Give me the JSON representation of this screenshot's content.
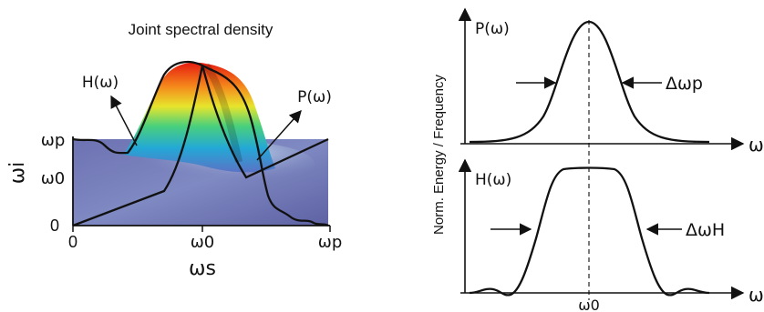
{
  "left_panel": {
    "title": "Joint spectral density",
    "x_axis_label": "ωs",
    "y_axis_label": "ωi",
    "x_ticks": [
      "0",
      "ω0",
      "ωp"
    ],
    "y_ticks": [
      "ωp",
      "ω0",
      "0"
    ],
    "callout_h": "H(ω)",
    "callout_p": "P(ω)",
    "colors": {
      "plane": "#6a6fae",
      "curve": "#111111"
    }
  },
  "right_panel": {
    "y_axis_label": "Norm. Energy / Frequency",
    "top": {
      "label": "P(ω)",
      "width_label": "Δωp",
      "axis_label": "ω"
    },
    "bottom": {
      "label": "H(ω)",
      "width_label": "ΔωH",
      "axis_label": "ω",
      "center_tick": "ω0"
    }
  }
}
